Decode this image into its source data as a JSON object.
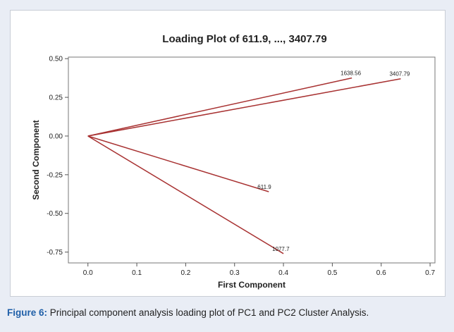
{
  "caption": {
    "label": "Figure 6:",
    "text": "Principal component analysis loading plot of PC1 and PC2 Cluster Analysis."
  },
  "chart_data": {
    "type": "line",
    "title": "Loading Plot of 611.9, ..., 3407.79",
    "xlabel": "First Component",
    "ylabel": "Second Component",
    "xlim": [
      -0.04,
      0.71
    ],
    "ylim": [
      -0.82,
      0.51
    ],
    "xticks": [
      0.0,
      0.1,
      0.2,
      0.3,
      0.4,
      0.5,
      0.6,
      0.7
    ],
    "xtick_labels": [
      "0.0",
      "0.1",
      "0.2",
      "0.3",
      "0.4",
      "0.5",
      "0.6",
      "0.7"
    ],
    "yticks": [
      0.5,
      0.25,
      0.0,
      -0.25,
      -0.5,
      -0.75
    ],
    "ytick_labels": [
      "0.50",
      "0.25",
      "0.00",
      "-0.25",
      "-0.50",
      "-0.75"
    ],
    "grid": false,
    "line_color": "#a83232",
    "series": [
      {
        "name": "1638.56",
        "x": 0.54,
        "y": 0.375
      },
      {
        "name": "3407.79",
        "x": 0.64,
        "y": 0.37
      },
      {
        "name": "611.9",
        "x": 0.37,
        "y": -0.36
      },
      {
        "name": "1077.7",
        "x": 0.4,
        "y": -0.76
      }
    ]
  }
}
